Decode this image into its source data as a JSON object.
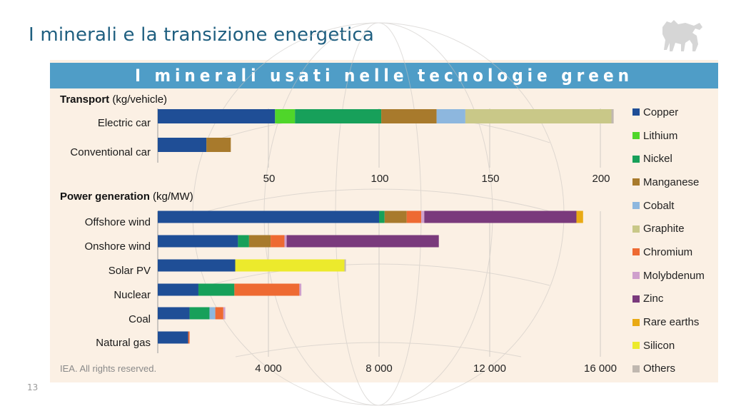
{
  "slide": {
    "title": "I minerali e la transizione energetica",
    "page_number": "13",
    "logo": "eni-six-legged-dog-logo"
  },
  "chart_data": [
    {
      "type": "bar",
      "orientation": "horizontal",
      "stacked": true,
      "title": "I minerali usati nelle tecnologie green",
      "section_title_bold": "Transport",
      "section_title_unit": "(kg/vehicle)",
      "xlabel": "kg/vehicle",
      "xlim": [
        0,
        210
      ],
      "xticks": [
        50,
        100,
        150,
        200
      ],
      "xtick_labels": [
        "50",
        "100",
        "150",
        "200"
      ],
      "grid": "vertical",
      "categories": [
        "Electric car",
        "Conventional car"
      ],
      "series": [
        {
          "name": "Copper",
          "values": [
            53,
            22
          ]
        },
        {
          "name": "Lithium",
          "values": [
            9,
            0
          ]
        },
        {
          "name": "Nickel",
          "values": [
            39,
            0
          ]
        },
        {
          "name": "Manganese",
          "values": [
            25,
            11
          ]
        },
        {
          "name": "Cobalt",
          "values": [
            13,
            0
          ]
        },
        {
          "name": "Graphite",
          "values": [
            66,
            0
          ]
        },
        {
          "name": "Chromium",
          "values": [
            0,
            0
          ]
        },
        {
          "name": "Molybdenum",
          "values": [
            0,
            0
          ]
        },
        {
          "name": "Zinc",
          "values": [
            0,
            0
          ]
        },
        {
          "name": "Rare earths",
          "values": [
            0,
            0
          ]
        },
        {
          "name": "Silicon",
          "values": [
            0,
            0
          ]
        },
        {
          "name": "Others",
          "values": [
            1,
            0
          ]
        }
      ]
    },
    {
      "type": "bar",
      "orientation": "horizontal",
      "stacked": true,
      "section_title_bold": "Power generation",
      "section_title_unit": "(kg/MW)",
      "xlabel": "kg/MW",
      "xlim": [
        0,
        16800
      ],
      "xticks": [
        4000,
        8000,
        12000,
        16000
      ],
      "xtick_labels": [
        "4 000",
        "8 000",
        "12 000",
        "16 000"
      ],
      "grid": "vertical",
      "categories": [
        "Offshore wind",
        "Onshore wind",
        "Solar PV",
        "Nuclear",
        "Coal",
        "Natural gas"
      ],
      "series": [
        {
          "name": "Copper",
          "values": [
            8000,
            2900,
            2800,
            1470,
            1150,
            1100
          ]
        },
        {
          "name": "Lithium",
          "values": [
            0,
            0,
            0,
            0,
            0,
            0
          ]
        },
        {
          "name": "Nickel",
          "values": [
            200,
            400,
            0,
            1300,
            720,
            0
          ]
        },
        {
          "name": "Manganese",
          "values": [
            800,
            780,
            0,
            0,
            0,
            0
          ]
        },
        {
          "name": "Cobalt",
          "values": [
            0,
            0,
            0,
            0,
            210,
            0
          ]
        },
        {
          "name": "Graphite",
          "values": [
            0,
            0,
            0,
            0,
            0,
            0
          ]
        },
        {
          "name": "Chromium",
          "values": [
            525,
            500,
            0,
            2350,
            290,
            50
          ]
        },
        {
          "name": "Molybdenum",
          "values": [
            110,
            80,
            0,
            70,
            70,
            0
          ]
        },
        {
          "name": "Zinc",
          "values": [
            5500,
            5500,
            0,
            0,
            0,
            0
          ]
        },
        {
          "name": "Rare earths",
          "values": [
            240,
            0,
            0,
            0,
            0,
            0
          ]
        },
        {
          "name": "Silicon",
          "values": [
            0,
            0,
            3950,
            0,
            0,
            0
          ]
        },
        {
          "name": "Others",
          "values": [
            0,
            0,
            50,
            0,
            0,
            0
          ]
        }
      ]
    }
  ],
  "legend": {
    "placement": "right",
    "items": [
      {
        "name": "Copper",
        "color": "#1f4e96"
      },
      {
        "name": "Lithium",
        "color": "#4fd62a"
      },
      {
        "name": "Nickel",
        "color": "#17a05a"
      },
      {
        "name": "Manganese",
        "color": "#a87a2c"
      },
      {
        "name": "Cobalt",
        "color": "#8db7de"
      },
      {
        "name": "Graphite",
        "color": "#c9c888"
      },
      {
        "name": "Chromium",
        "color": "#ee6a32"
      },
      {
        "name": "Molybdenum",
        "color": "#cfa0cc"
      },
      {
        "name": "Zinc",
        "color": "#7a3a7c"
      },
      {
        "name": "Rare earths",
        "color": "#e9aa14"
      },
      {
        "name": "Silicon",
        "color": "#ecea2c"
      },
      {
        "name": "Others",
        "color": "#c0b8b0"
      }
    ]
  },
  "source": "IEA. All rights reserved."
}
